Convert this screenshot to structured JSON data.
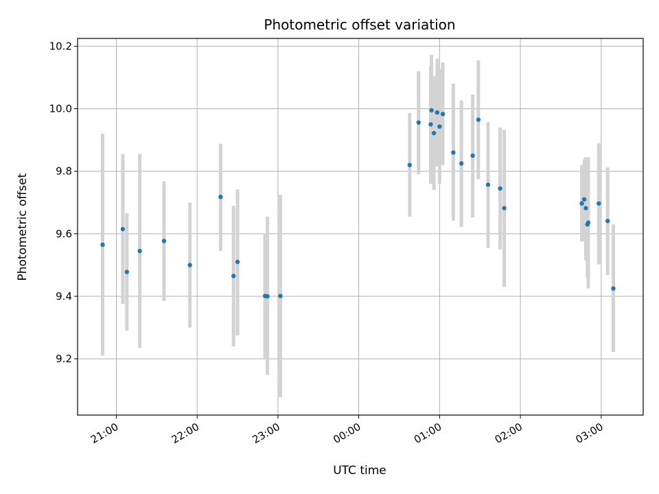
{
  "chart_data": {
    "type": "scatter",
    "title": "Photometric offset variation",
    "xlabel": "UTC time",
    "ylabel": "Photometric offset",
    "x_unit": "hours (UTC, continuing past midnight as 24+)",
    "xlim": [
      20.52,
      27.52
    ],
    "ylim": [
      9.02,
      10.225
    ],
    "x_ticks": [
      21,
      22,
      23,
      24,
      25,
      26,
      27
    ],
    "x_tick_labels": [
      "21:00",
      "22:00",
      "23:00",
      "00:00",
      "01:00",
      "02:00",
      "03:00"
    ],
    "y_ticks": [
      9.2,
      9.4,
      9.6,
      9.8,
      10.0,
      10.2
    ],
    "y_tick_labels": [
      "9.2",
      "9.4",
      "9.6",
      "9.8",
      "10.0",
      "10.2"
    ],
    "grid": true,
    "colors": {
      "point": "#1f77b4",
      "errorbar": "#d3d3d3",
      "grid": "#b0b0b0"
    },
    "points": [
      {
        "x": 20.83,
        "y": 9.565,
        "low": 9.21,
        "high": 9.92
      },
      {
        "x": 21.08,
        "y": 9.615,
        "low": 9.375,
        "high": 9.855
      },
      {
        "x": 21.13,
        "y": 9.478,
        "low": 9.29,
        "high": 9.665
      },
      {
        "x": 21.29,
        "y": 9.545,
        "low": 9.235,
        "high": 9.855
      },
      {
        "x": 21.59,
        "y": 9.577,
        "low": 9.385,
        "high": 9.768
      },
      {
        "x": 21.91,
        "y": 9.5,
        "low": 9.3,
        "high": 9.7
      },
      {
        "x": 22.29,
        "y": 9.718,
        "low": 9.545,
        "high": 9.888
      },
      {
        "x": 22.45,
        "y": 9.465,
        "low": 9.24,
        "high": 9.69
      },
      {
        "x": 22.5,
        "y": 9.51,
        "low": 9.275,
        "high": 9.742
      },
      {
        "x": 22.84,
        "y": 9.401,
        "low": 9.2,
        "high": 9.6
      },
      {
        "x": 22.87,
        "y": 9.4,
        "low": 9.148,
        "high": 9.655
      },
      {
        "x": 23.03,
        "y": 9.401,
        "low": 9.077,
        "high": 9.725
      },
      {
        "x": 24.63,
        "y": 9.82,
        "low": 9.655,
        "high": 9.986
      },
      {
        "x": 24.74,
        "y": 9.956,
        "low": 9.79,
        "high": 10.12
      },
      {
        "x": 24.89,
        "y": 9.95,
        "low": 9.76,
        "high": 10.135
      },
      {
        "x": 24.9,
        "y": 9.995,
        "low": 9.815,
        "high": 10.172
      },
      {
        "x": 24.93,
        "y": 9.922,
        "low": 9.74,
        "high": 10.105
      },
      {
        "x": 24.97,
        "y": 9.988,
        "low": 9.815,
        "high": 10.16
      },
      {
        "x": 25.0,
        "y": 9.943,
        "low": 9.76,
        "high": 10.127
      },
      {
        "x": 25.04,
        "y": 9.983,
        "low": 9.82,
        "high": 10.148
      },
      {
        "x": 25.17,
        "y": 9.86,
        "low": 9.642,
        "high": 10.08
      },
      {
        "x": 25.27,
        "y": 9.825,
        "low": 9.622,
        "high": 10.027
      },
      {
        "x": 25.41,
        "y": 9.85,
        "low": 9.652,
        "high": 10.045
      },
      {
        "x": 25.48,
        "y": 9.965,
        "low": 9.775,
        "high": 10.155
      },
      {
        "x": 25.6,
        "y": 9.757,
        "low": 9.555,
        "high": 9.957
      },
      {
        "x": 25.75,
        "y": 9.745,
        "low": 9.55,
        "high": 9.94
      },
      {
        "x": 25.8,
        "y": 9.682,
        "low": 9.43,
        "high": 9.932
      },
      {
        "x": 26.76,
        "y": 9.697,
        "low": 9.575,
        "high": 9.82
      },
      {
        "x": 26.79,
        "y": 9.71,
        "low": 9.578,
        "high": 9.838
      },
      {
        "x": 26.81,
        "y": 9.682,
        "low": 9.515,
        "high": 9.845
      },
      {
        "x": 26.83,
        "y": 9.63,
        "low": 9.462,
        "high": 9.8
      },
      {
        "x": 26.84,
        "y": 9.636,
        "low": 9.425,
        "high": 9.845
      },
      {
        "x": 26.97,
        "y": 9.697,
        "low": 9.502,
        "high": 9.89
      },
      {
        "x": 27.08,
        "y": 9.641,
        "low": 9.468,
        "high": 9.812
      },
      {
        "x": 27.15,
        "y": 9.425,
        "low": 9.222,
        "high": 9.63
      }
    ]
  }
}
